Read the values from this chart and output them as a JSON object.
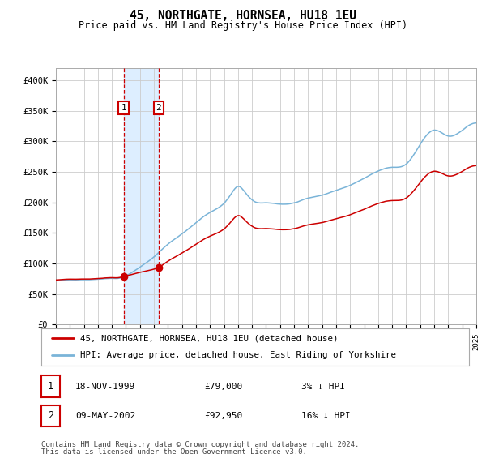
{
  "title": "45, NORTHGATE, HORNSEA, HU18 1EU",
  "subtitle": "Price paid vs. HM Land Registry's House Price Index (HPI)",
  "ylim": [
    0,
    420000
  ],
  "yticks": [
    0,
    50000,
    100000,
    150000,
    200000,
    250000,
    300000,
    350000,
    400000
  ],
  "ytick_labels": [
    "£0",
    "£50K",
    "£100K",
    "£150K",
    "£200K",
    "£250K",
    "£300K",
    "£350K",
    "£400K"
  ],
  "hpi_color": "#7ab4d8",
  "price_color": "#cc0000",
  "purchase1_date": "18-NOV-1999",
  "purchase1_price": 79000,
  "purchase1_note": "3% ↓ HPI",
  "purchase2_date": "09-MAY-2002",
  "purchase2_price": 92950,
  "purchase2_note": "16% ↓ HPI",
  "legend_line1": "45, NORTHGATE, HORNSEA, HU18 1EU (detached house)",
  "legend_line2": "HPI: Average price, detached house, East Riding of Yorkshire",
  "footer_line1": "Contains HM Land Registry data © Crown copyright and database right 2024.",
  "footer_line2": "This data is licensed under the Open Government Licence v3.0.",
  "shade_color": "#ddeeff",
  "vline_color": "#cc0000",
  "background_color": "#ffffff",
  "grid_color": "#cccccc",
  "hpi_anchor_x": [
    0,
    12,
    24,
    36,
    48,
    58,
    60,
    72,
    84,
    96,
    108,
    120,
    132,
    144,
    150,
    156,
    162,
    168,
    180,
    192,
    204,
    216,
    228,
    240,
    252,
    264,
    276,
    288,
    300,
    312,
    324,
    336,
    348,
    360
  ],
  "hpi_anchor_y": [
    72000,
    73000,
    74000,
    75000,
    77000,
    79000,
    81000,
    95000,
    112000,
    133000,
    150000,
    168000,
    185000,
    200000,
    215000,
    228000,
    218000,
    205000,
    200000,
    198000,
    200000,
    207000,
    212000,
    220000,
    228000,
    240000,
    252000,
    258000,
    263000,
    295000,
    318000,
    308000,
    318000,
    330000
  ],
  "idx1": 58,
  "idx2": 88,
  "price1": 79000,
  "price2": 92950
}
